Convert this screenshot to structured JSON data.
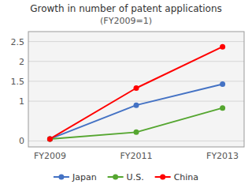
{
  "chart_data": {
    "type": "line",
    "title": "Growth in number of patent applications",
    "subtitle": "(FY2009=1)",
    "categories": [
      "FY2009",
      "FY2011",
      "FY2013"
    ],
    "series": [
      {
        "name": "Japan",
        "color": "#4472C4",
        "marker": "circle",
        "values": [
          0.05,
          0.9,
          1.43
        ]
      },
      {
        "name": "U.S.",
        "color": "#55A630",
        "marker": "circle",
        "values": [
          0.05,
          0.22,
          0.83
        ]
      },
      {
        "name": "China",
        "color": "#FF0000",
        "marker": "circle",
        "values": [
          0.05,
          1.33,
          2.37
        ]
      }
    ],
    "ylim": [
      -0.15,
      2.75
    ],
    "yticks": [
      0,
      1,
      1.5,
      2,
      2.5
    ],
    "grid": true,
    "legend": "bottom"
  }
}
